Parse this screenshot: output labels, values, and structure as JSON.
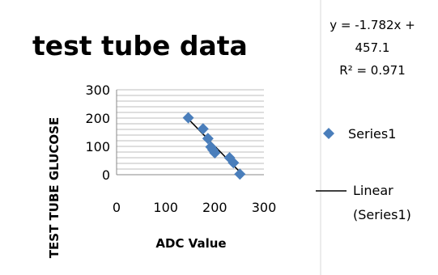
{
  "chart_data": {
    "type": "scatter",
    "title": "test tube data",
    "xlabel": "ADC Value",
    "ylabel": "TEST TUBE GLUCOSE",
    "xlim": [
      0,
      300
    ],
    "ylim": [
      0,
      300
    ],
    "x_ticks": [
      "0",
      "100",
      "200",
      "300"
    ],
    "y_ticks": [
      "0",
      "100",
      "200",
      "300"
    ],
    "grid": "horizontal",
    "legend_position": "right",
    "series": [
      {
        "name": "Series1",
        "color": "#4a7ebb",
        "marker": "diamond",
        "points": [
          {
            "x": 146,
            "y": 201
          },
          {
            "x": 176,
            "y": 162
          },
          {
            "x": 186,
            "y": 128
          },
          {
            "x": 192,
            "y": 98
          },
          {
            "x": 196,
            "y": 88
          },
          {
            "x": 200,
            "y": 77
          },
          {
            "x": 230,
            "y": 60
          },
          {
            "x": 238,
            "y": 42
          },
          {
            "x": 251,
            "y": 2
          }
        ]
      }
    ],
    "trendline": {
      "label": "Linear (Series1)",
      "label_lines": [
        "Linear",
        "(Series1)"
      ],
      "slope": -1.782,
      "intercept": 457.1,
      "x_range": [
        146,
        252
      ],
      "equation_lines": [
        "y = -1.782x +",
        "457.1",
        "R² = 0.971"
      ]
    }
  }
}
